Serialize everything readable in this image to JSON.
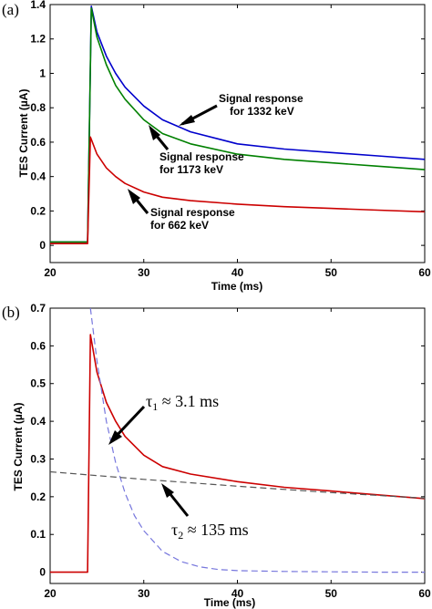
{
  "chart_data": [
    {
      "panel_label": "(a)",
      "type": "line",
      "xlabel": "Time (ms)",
      "ylabel": "TES Current (µA)",
      "xlim": [
        20,
        60
      ],
      "ylim": [
        -0.1,
        1.4
      ],
      "xticks": [
        "20",
        "30",
        "40",
        "50",
        "60"
      ],
      "yticks": [
        "0",
        "0.2",
        "0.4",
        "0.6",
        "0.8",
        "1",
        "1.2",
        "1.4"
      ],
      "grid": false,
      "series": [
        {
          "name": "Signal response for 1332 keV",
          "color": "#0000cc",
          "x": [
            20,
            24.0,
            24.4,
            25,
            26,
            27,
            28,
            30,
            32,
            35,
            40,
            45,
            50,
            55,
            60
          ],
          "y": [
            0.02,
            0.02,
            1.39,
            1.24,
            1.1,
            1.0,
            0.92,
            0.81,
            0.73,
            0.66,
            0.59,
            0.56,
            0.54,
            0.52,
            0.5
          ]
        },
        {
          "name": "Signal response for 1173 keV",
          "color": "#008000",
          "x": [
            20,
            24.0,
            24.4,
            25,
            26,
            27,
            28,
            30,
            32,
            35,
            40,
            45,
            50,
            55,
            60
          ],
          "y": [
            0.02,
            0.02,
            1.38,
            1.21,
            1.05,
            0.93,
            0.85,
            0.73,
            0.65,
            0.59,
            0.53,
            0.5,
            0.48,
            0.46,
            0.44
          ]
        },
        {
          "name": "Signal response for 662 keV",
          "color": "#cc0000",
          "x": [
            20,
            24.0,
            24.3,
            25,
            26,
            27,
            28,
            30,
            32,
            35,
            40,
            45,
            50,
            55,
            60
          ],
          "y": [
            0.01,
            0.01,
            0.63,
            0.53,
            0.45,
            0.4,
            0.36,
            0.31,
            0.28,
            0.26,
            0.24,
            0.225,
            0.215,
            0.205,
            0.195
          ]
        }
      ],
      "annotations": [
        {
          "lines": [
            "Signal response",
            "for 1332 keV"
          ]
        },
        {
          "lines": [
            "Signal response",
            "for 1173 keV"
          ]
        },
        {
          "lines": [
            "Signal response",
            "for 662 keV"
          ]
        }
      ]
    },
    {
      "panel_label": "(b)",
      "type": "line",
      "xlabel": "Time (ms)",
      "ylabel": "TES Current (µA)",
      "xlim": [
        20,
        60
      ],
      "ylim": [
        -0.03,
        0.7
      ],
      "xticks": [
        "20",
        "30",
        "40",
        "50",
        "60"
      ],
      "yticks": [
        "0",
        "0.1",
        "0.2",
        "0.3",
        "0.4",
        "0.5",
        "0.6",
        "0.7"
      ],
      "grid": false,
      "series": [
        {
          "name": "",
          "color": "#cc0000",
          "style": "solid",
          "x": [
            20,
            24.0,
            24.3,
            25,
            26,
            27,
            28,
            30,
            32,
            35,
            40,
            45,
            50,
            55,
            60
          ],
          "y": [
            0,
            0,
            0.63,
            0.53,
            0.45,
            0.4,
            0.36,
            0.31,
            0.28,
            0.26,
            0.24,
            0.225,
            0.215,
            0.205,
            0.195
          ]
        },
        {
          "name": "",
          "color": "#7777dd",
          "style": "dashed",
          "x": [
            24.3,
            25,
            26,
            27,
            28,
            29,
            30,
            32,
            34,
            36,
            38,
            40,
            45,
            50,
            55,
            60
          ],
          "y": [
            0.7,
            0.56,
            0.4,
            0.29,
            0.21,
            0.15,
            0.11,
            0.055,
            0.028,
            0.014,
            0.007,
            0.004,
            0.002,
            0.001,
            0.0,
            0.0
          ]
        },
        {
          "name": "",
          "color": "#555555",
          "style": "dashed",
          "x": [
            20,
            30,
            40,
            50,
            60
          ],
          "y": [
            0.266,
            0.246,
            0.228,
            0.211,
            0.196
          ]
        }
      ],
      "annotations": [
        {
          "label": "τ",
          "sub": "1",
          "rest": " ≈ 3.1 ms"
        },
        {
          "label": "τ",
          "sub": "2",
          "rest": " ≈ 135 ms"
        }
      ]
    }
  ]
}
